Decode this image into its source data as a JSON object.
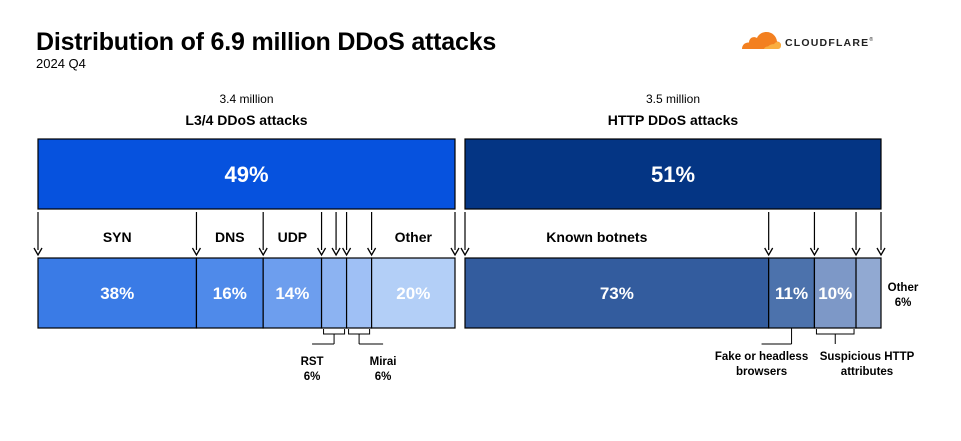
{
  "header": {
    "title": "Distribution of 6.9 million DDoS attacks",
    "subtitle": "2024 Q4",
    "logo_text": "CLOUDFLARE",
    "logo_tm": "®"
  },
  "chart_data": {
    "type": "bar",
    "title": "Distribution of 6.9 million DDoS attacks",
    "subtitle": "2024 Q4",
    "groups": [
      {
        "count": "3.4 million",
        "name": "L3/4 DDoS attacks",
        "share": 49,
        "share_label": "49%",
        "color": "#0652de",
        "segments": [
          {
            "name": "SYN",
            "value": 38,
            "label": "38%",
            "color": "#3a7be6"
          },
          {
            "name": "DNS",
            "value": 16,
            "label": "16%",
            "color": "#4f8aea"
          },
          {
            "name": "UDP",
            "value": 14,
            "label": "14%",
            "color": "#6d9eee"
          },
          {
            "name": "RST",
            "value": 6,
            "label": "6%",
            "color": "#8cb3f2"
          },
          {
            "name": "Mirai",
            "value": 6,
            "label": "6%",
            "color": "#9fc0f5"
          },
          {
            "name": "Other",
            "value": 20,
            "label": "20%",
            "color": "#b3cff7"
          }
        ]
      },
      {
        "count": "3.5 million",
        "name": "HTTP DDoS attacks",
        "share": 51,
        "share_label": "51%",
        "color": "#043584",
        "segments": [
          {
            "name": "Known botnets",
            "value": 73,
            "label": "73%",
            "color": "#335c9e"
          },
          {
            "name": "Fake or headless browsers",
            "value": 11,
            "label": "11%",
            "color": "#4c72ac"
          },
          {
            "name": "Suspicious HTTP attributes",
            "value": 10,
            "label": "10%",
            "color": "#7d98c7"
          },
          {
            "name": "Other",
            "value": 6,
            "label": "6%",
            "color": "#91a9d2"
          }
        ]
      }
    ]
  }
}
